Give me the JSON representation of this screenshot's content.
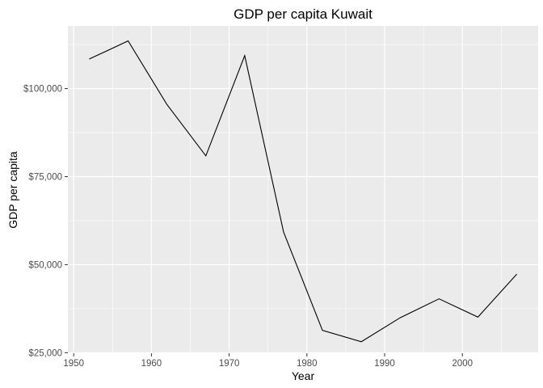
{
  "chart_data": {
    "type": "line",
    "title": "GDP per capita Kuwait",
    "xlabel": "Year",
    "ylabel": "GDP per capita",
    "x": [
      1952,
      1957,
      1962,
      1967,
      1972,
      1977,
      1982,
      1987,
      1992,
      1997,
      2002,
      2007
    ],
    "series": [
      {
        "values": [
          108382,
          113523,
          95458,
          80895,
          109348,
          59265,
          31354,
          28118,
          34933,
          40301,
          35110,
          47307
        ]
      }
    ],
    "xlim": [
      1949.25,
      2009.75
    ],
    "ylim": [
      24850,
      117800
    ],
    "x_ticks": [
      1950,
      1960,
      1970,
      1980,
      1990,
      2000
    ],
    "x_tick_labels": [
      "1950",
      "1960",
      "1970",
      "1980",
      "1990",
      "2000"
    ],
    "y_ticks": [
      25000,
      50000,
      75000,
      100000
    ],
    "y_tick_labels": [
      "$25,000",
      "$50,000",
      "$75,000",
      "$100,000"
    ],
    "grid": true,
    "colors": {
      "panel": "#ebebeb",
      "grid": "#ffffff",
      "line": "#000000"
    }
  }
}
